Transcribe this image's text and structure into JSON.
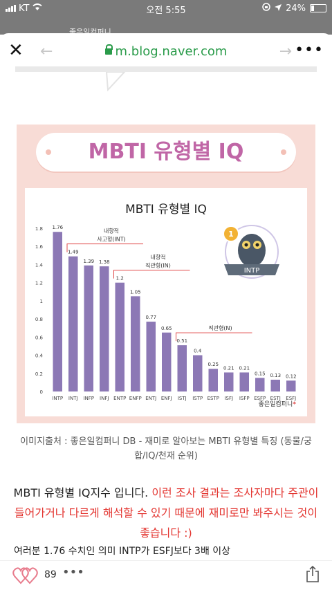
{
  "status_bar": {
    "carrier": "KT",
    "time": "오전 5:55",
    "battery": "24%",
    "battery_level": 0.24
  },
  "behind_sheet_text": "좋은일컴퍼니",
  "browser": {
    "url": "m.blog.naver.com"
  },
  "card": {
    "banner_title": "MBTI 유형별 IQ",
    "credit": "좋은일컴퍼니"
  },
  "chart_data": {
    "type": "bar",
    "title": "MBTI 유형별 IQ",
    "categories": [
      "INTP",
      "INTJ",
      "INFP",
      "INFJ",
      "ENTP",
      "ENFP",
      "ENTJ",
      "ENFJ",
      "ISTJ",
      "ISTP",
      "ESTP",
      "ISFJ",
      "ISFP",
      "ESFP",
      "ESTJ",
      "ESFJ"
    ],
    "values": [
      1.76,
      1.49,
      1.39,
      1.38,
      1.2,
      1.05,
      0.77,
      0.65,
      0.51,
      0.4,
      0.25,
      0.21,
      0.21,
      0.15,
      0.13,
      0.12
    ],
    "value_labels": [
      "1.76",
      "1.49",
      "1.39",
      "1.38",
      "1.2",
      "1.05",
      "0.77",
      "0.65",
      "0.51",
      "0.4",
      "0.25",
      "0.21",
      "0.21",
      "0.15",
      "0.13",
      "0.12"
    ],
    "yticks": [
      "0",
      "0.2",
      "0.4",
      "0.6",
      "0.8",
      "1",
      "1.2",
      "1.4",
      "1.6",
      "1.8"
    ],
    "ylim": [
      0,
      1.8
    ],
    "bar_color": "#8c78b5",
    "annotations": [
      {
        "text": [
          "내향적",
          "사고형(INT)"
        ],
        "from_index": 1
      },
      {
        "text": [
          "내향적",
          "직관형(IN)"
        ],
        "from_index": 4
      },
      {
        "text": [
          "직관형(N)"
        ],
        "from_index": 8
      }
    ],
    "badge": {
      "rank": "1",
      "label": "INTP"
    }
  },
  "caption": "이미지출처 : 좋은일컴퍼니 DB - 재미로 알아보는 MBTI 유형별 특징 (동물/궁합/IQ/천재 순위)",
  "paragraph": {
    "normal": "MBTI 유형별 IQ지수 입니다. ",
    "red": "이런 조사 결과는 조사자마다 주관이 들어가거나 다르게 해석할 수 있기 때문에 재미로만 봐주시는 것이 좋습니다 :)"
  },
  "cutoff_line": "여러분 1.76 수치인 의미 INTP가 ESFJ보다 3배 이상",
  "bottom_bar": {
    "likes": "89"
  },
  "colors": {
    "url_green": "#2a9b4a",
    "banner_pink": "#c066a6",
    "notice_red": "#e3342f",
    "card_bg": "#f8dcd6"
  }
}
